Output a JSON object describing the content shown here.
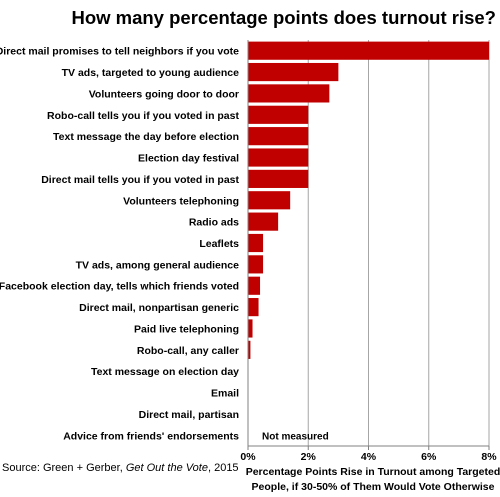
{
  "chart_data": {
    "type": "bar",
    "orientation": "horizontal",
    "title": "How many percentage points does turnout rise?",
    "xlabel_line1": "Percentage Points Rise in Turnout among Targeted",
    "xlabel_line2": "People, if 30-50% of Them Would Vote Otherwise",
    "xlim": [
      0,
      8
    ],
    "xticks": [
      "0%",
      "2%",
      "4%",
      "6%",
      "8%"
    ],
    "grid": true,
    "bar_color": "#c00000",
    "categories": [
      "Direct mail promises to tell neighbors if you vote",
      "TV ads, targeted to young audience",
      "Volunteers going door to door",
      "Robo-call tells you if you voted in past",
      "Text message the day before election",
      "Election day festival",
      "Direct mail tells you if you voted in past",
      "Volunteers telephoning",
      "Radio ads",
      "Leaflets",
      "TV ads, among general audience",
      "Facebook election day, tells which friends voted",
      "Direct mail, nonpartisan generic",
      "Paid live telephoning",
      "Robo-call, any caller",
      "Text message on election day",
      "Email",
      "Direct mail, partisan",
      "Advice from friends' endorsements"
    ],
    "values": [
      8,
      3,
      2.7,
      2,
      2,
      2,
      2,
      1.4,
      1,
      0.5,
      0.5,
      0.4,
      0.35,
      0.15,
      0.08,
      0,
      0,
      0,
      null
    ],
    "annotation": "Not measured"
  },
  "source": {
    "prefix": "Source: Green + Gerber, ",
    "book": "Get Out the Vote",
    "suffix": ", 2015"
  }
}
